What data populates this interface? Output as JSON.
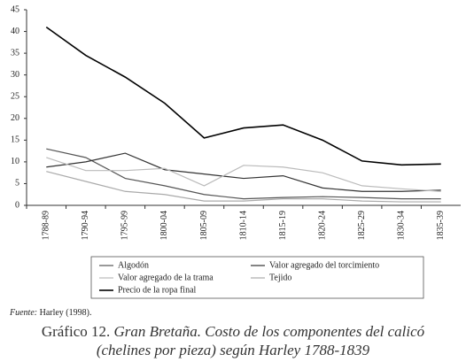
{
  "chart_data": {
    "type": "line",
    "categories": [
      "1788-89",
      "1790-94",
      "1795-99",
      "1800-04",
      "1805-09",
      "1810-14",
      "1815-19",
      "1820-24",
      "1825-29",
      "1830-34",
      "1835-39"
    ],
    "series": [
      {
        "name": "Algodón",
        "color": "#555555",
        "values": [
          13,
          11,
          6.2,
          4.5,
          2.5,
          1.5,
          1.8,
          2,
          1.8,
          1.5,
          1.5
        ]
      },
      {
        "name": "Valor agregado del torcimiento",
        "color": "#333333",
        "values": [
          8.8,
          10,
          12,
          8.2,
          7.2,
          6.2,
          6.8,
          4,
          3.2,
          3.2,
          3.5
        ]
      },
      {
        "name": "Valor agregado de la trama",
        "color": "#bbbbbb",
        "values": [
          11,
          8,
          8,
          8.5,
          4.5,
          9.2,
          8.8,
          7.5,
          4.5,
          3.8,
          3.2
        ]
      },
      {
        "name": "Tejido",
        "color": "#aaaaaa",
        "values": [
          7.8,
          5.5,
          3.2,
          2.5,
          1,
          1,
          1.5,
          1.5,
          1,
          0.8,
          0.8
        ]
      },
      {
        "name": "Precio de la ropa final",
        "color": "#000000",
        "values": [
          41,
          34.5,
          29.5,
          23.5,
          15.5,
          17.8,
          18.5,
          15,
          10.2,
          9.3,
          9.5
        ]
      }
    ],
    "ylim": [
      0,
      45
    ],
    "yticks": [
      0,
      5,
      10,
      15,
      20,
      25,
      30,
      35,
      40,
      45
    ],
    "grid": false,
    "source_label": "Fuente:",
    "source": "Harley (1998).",
    "caption_number": "Gráfico 12.",
    "caption_lines": [
      "Gran Bretaña. Costo de los componentes del calicó",
      "(chelines por pieza) según Harley 1788-1839"
    ]
  }
}
